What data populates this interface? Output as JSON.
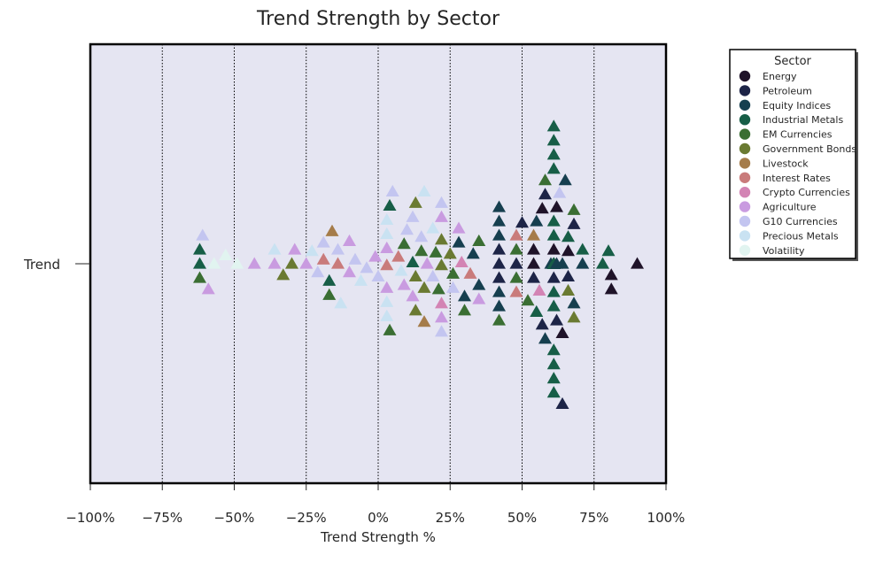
{
  "chart_data": {
    "type": "scatter",
    "title": "Trend Strength by Sector",
    "xlabel": "Trend Strength %",
    "ylabel": "",
    "y_category": "Trend",
    "xlim": [
      -100,
      100
    ],
    "x_ticks": [
      -100,
      -75,
      -50,
      -25,
      0,
      25,
      50,
      75,
      100
    ],
    "x_tick_labels": [
      "−100%",
      "−75%",
      "−50%",
      "−25%",
      "0%",
      "25%",
      "50%",
      "75%",
      "100%"
    ],
    "grid": "vertical dotted",
    "marker": "triangle",
    "legend": {
      "title": "Sector",
      "placement": "outside-upper-right",
      "entries": [
        {
          "name": "Energy",
          "color": "#1f1329"
        },
        {
          "name": "Petroleum",
          "color": "#1d2447"
        },
        {
          "name": "Equity Indices",
          "color": "#163f4f"
        },
        {
          "name": "Industrial Metals",
          "color": "#175e47"
        },
        {
          "name": "EM Currencies",
          "color": "#3a6e33"
        },
        {
          "name": "Government Bonds",
          "color": "#6a7a32"
        },
        {
          "name": "Livestock",
          "color": "#a57c4a"
        },
        {
          "name": "Interest Rates",
          "color": "#c97b7b"
        },
        {
          "name": "Crypto Currencies",
          "color": "#d384b4"
        },
        {
          "name": "Agriculture",
          "color": "#c99be0"
        },
        {
          "name": "G10 Currencies",
          "color": "#c3c5f0"
        },
        {
          "name": "Precious Metals",
          "color": "#c9e2f2"
        },
        {
          "name": "Volatility",
          "color": "#e1f4f0"
        }
      ]
    },
    "series": [
      {
        "name": "Energy",
        "x": [
          90,
          81,
          81,
          64,
          54,
          57,
          61,
          66,
          62,
          54
        ]
      },
      {
        "name": "Petroleum",
        "x": [
          42,
          42,
          48,
          62,
          64,
          68,
          54,
          58,
          42,
          61,
          66,
          57,
          50
        ]
      },
      {
        "name": "Equity Indices",
        "x": [
          42,
          42,
          28,
          30,
          33,
          55,
          60,
          64,
          68,
          71,
          65,
          62,
          58,
          42,
          42,
          42,
          35
        ]
      },
      {
        "name": "Industrial Metals",
        "x": [
          61,
          61,
          61,
          61,
          61,
          61,
          61,
          61,
          61,
          61,
          61,
          61,
          61,
          61,
          61,
          61,
          61,
          61,
          61,
          61,
          61,
          61,
          61,
          61,
          61,
          61,
          61,
          61,
          61,
          61,
          61,
          78,
          80,
          66,
          71,
          55,
          -62,
          -62,
          -17,
          4,
          12
        ]
      },
      {
        "name": "EM Currencies",
        "x": [
          -62,
          -17,
          4,
          9,
          15,
          21,
          26,
          35,
          42,
          48,
          52,
          58,
          68,
          30,
          20,
          48
        ]
      },
      {
        "name": "Government Bonds",
        "x": [
          -33,
          -30,
          13,
          16,
          22,
          25,
          13,
          68,
          66,
          13,
          22
        ]
      },
      {
        "name": "Livestock",
        "x": [
          -16,
          16,
          54
        ]
      },
      {
        "name": "Interest Rates",
        "x": [
          -19,
          7,
          48,
          32,
          -14,
          48,
          3
        ]
      },
      {
        "name": "Crypto Currencies",
        "x": [
          22,
          56,
          29
        ]
      },
      {
        "name": "Agriculture",
        "x": [
          -59,
          -43,
          -36,
          -29,
          -25,
          -10,
          -1,
          3,
          9,
          12,
          17,
          22,
          28,
          35,
          3,
          -10,
          22
        ]
      },
      {
        "name": "G10 Currencies",
        "x": [
          -61,
          -21,
          -19,
          -14,
          -8,
          -4,
          0,
          5,
          10,
          15,
          19,
          22,
          26,
          63,
          22,
          12
        ]
      },
      {
        "name": "Precious Metals",
        "x": [
          -36,
          -23,
          -13,
          -6,
          3,
          3,
          3,
          3,
          8,
          16,
          19
        ]
      },
      {
        "name": "Volatility",
        "x": [
          -57,
          -53,
          -49
        ]
      }
    ]
  }
}
